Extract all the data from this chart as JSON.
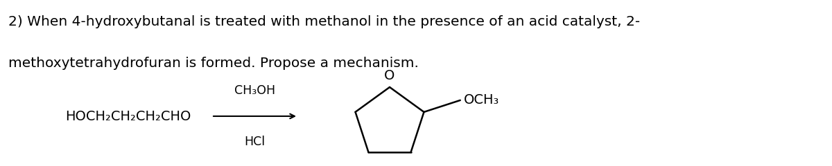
{
  "background_color": "#ffffff",
  "title_line1": "2) When 4-hydroxybutanal is treated with methanol in the presence of an acid catalyst, 2-",
  "title_line2": "methoxytetrahydrofuran is formed. Propose a mechanism.",
  "title_fontsize": 14.5,
  "title_font": "DejaVu Sans",
  "reactant_label": "HOCH₂CH₂CH₂CHO",
  "reagent_top": "CH₃OH",
  "reagent_bottom": "HCl",
  "product_label": "OCH₃",
  "oxygen_label": "O",
  "label_fontsize": 14.0,
  "reagent_fontsize": 12.5,
  "text_color": "#000000",
  "line_lw": 1.8
}
